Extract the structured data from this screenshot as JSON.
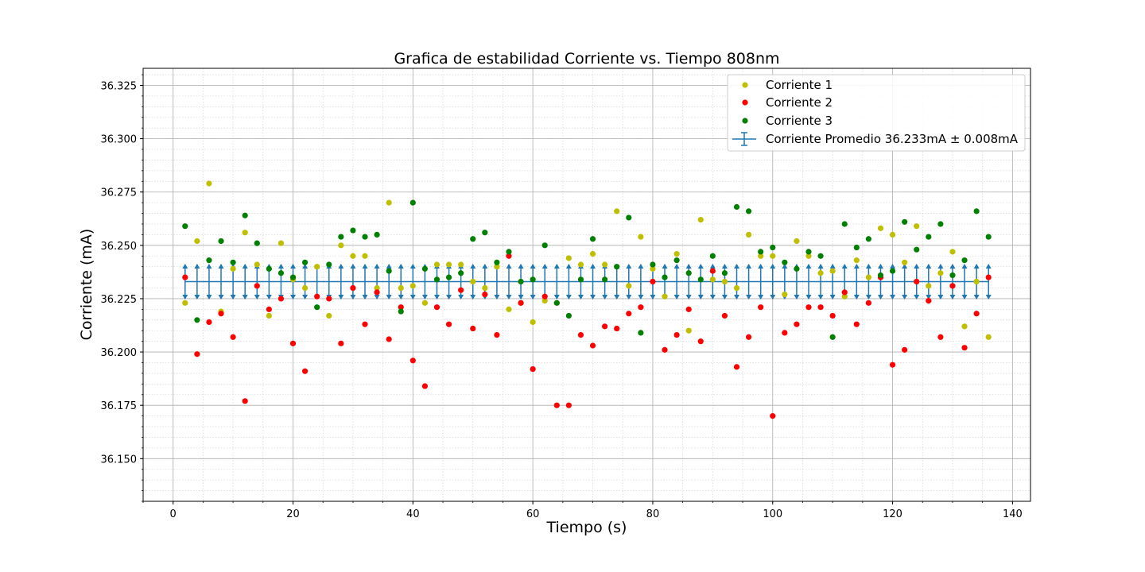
{
  "chart_data": {
    "type": "scatter",
    "title": "Grafica de estabilidad Corriente vs. Tiempo 808nm",
    "xlabel": "Tiempo (s)",
    "ylabel": "Corriente (mA)",
    "xlim": [
      -5,
      143
    ],
    "ylim": [
      36.13,
      36.333
    ],
    "xticks": [
      0,
      20,
      40,
      60,
      80,
      100,
      120,
      140
    ],
    "yticks": [
      36.15,
      36.175,
      36.2,
      36.225,
      36.25,
      36.275,
      36.3,
      36.325
    ],
    "ytick_labels": [
      "36.150",
      "36.175",
      "36.200",
      "36.225",
      "36.250",
      "36.275",
      "36.300",
      "36.325"
    ],
    "grid": true,
    "minor_grid": true,
    "legend_position": "top-right",
    "x": [
      2,
      4,
      6,
      8,
      10,
      12,
      14,
      16,
      18,
      20,
      22,
      24,
      26,
      28,
      30,
      32,
      34,
      36,
      38,
      40,
      42,
      44,
      46,
      48,
      50,
      52,
      54,
      56,
      58,
      60,
      62,
      64,
      66,
      68,
      70,
      72,
      74,
      76,
      78,
      80,
      82,
      84,
      86,
      88,
      90,
      92,
      94,
      96,
      98,
      100,
      102,
      104,
      106,
      108,
      110,
      112,
      114,
      116,
      118,
      120,
      122,
      124,
      126,
      128,
      130,
      132,
      134,
      136
    ],
    "series": [
      {
        "name": "Corriente 1",
        "color": "#bfbf00",
        "values": [
          36.223,
          36.252,
          36.279,
          36.219,
          36.239,
          36.256,
          36.241,
          36.217,
          36.251,
          36.234,
          36.23,
          36.24,
          36.217,
          36.25,
          36.245,
          36.245,
          36.23,
          36.27,
          36.23,
          36.231,
          36.223,
          36.241,
          36.241,
          36.241,
          36.233,
          36.23,
          36.24,
          36.22,
          36.223,
          36.214,
          36.224,
          36.223,
          36.244,
          36.241,
          36.246,
          36.241,
          36.266,
          36.231,
          36.254,
          36.239,
          36.226,
          36.246,
          36.21,
          36.262,
          36.234,
          36.233,
          36.23,
          36.255,
          36.245,
          36.245,
          36.227,
          36.252,
          36.245,
          36.237,
          36.238,
          36.226,
          36.243,
          36.235,
          36.258,
          36.255,
          36.242,
          36.259,
          36.231,
          36.237,
          36.247,
          36.212,
          36.233,
          36.207
        ]
      },
      {
        "name": "Corriente 2",
        "color": "#ff0000",
        "values": [
          36.235,
          36.199,
          36.214,
          36.218,
          36.207,
          36.177,
          36.231,
          36.22,
          36.225,
          36.204,
          36.191,
          36.226,
          36.225,
          36.204,
          36.23,
          36.213,
          36.228,
          36.206,
          36.221,
          36.196,
          36.184,
          36.221,
          36.213,
          36.229,
          36.211,
          36.227,
          36.208,
          36.245,
          36.223,
          36.192,
          36.226,
          36.175,
          36.175,
          36.208,
          36.203,
          36.212,
          36.211,
          36.218,
          36.221,
          36.233,
          36.201,
          36.208,
          36.22,
          36.205,
          36.238,
          36.217,
          36.193,
          36.207,
          36.221,
          36.17,
          36.209,
          36.213,
          36.221,
          36.221,
          36.217,
          36.228,
          36.213,
          36.223,
          36.235,
          36.194,
          36.201,
          36.233,
          36.224,
          36.207,
          36.231,
          36.202,
          36.218,
          36.235
        ]
      },
      {
        "name": "Corriente 3",
        "color": "#008000",
        "values": [
          36.259,
          36.215,
          36.243,
          36.252,
          36.242,
          36.264,
          36.251,
          36.239,
          36.237,
          36.235,
          36.242,
          36.221,
          36.241,
          36.254,
          36.257,
          36.254,
          36.255,
          36.238,
          36.219,
          36.27,
          36.239,
          36.234,
          36.235,
          36.237,
          36.253,
          36.256,
          36.242,
          36.247,
          36.233,
          36.234,
          36.25,
          36.223,
          36.217,
          36.234,
          36.253,
          36.234,
          36.24,
          36.263,
          36.209,
          36.241,
          36.235,
          36.243,
          36.237,
          36.234,
          36.245,
          36.237,
          36.268,
          36.266,
          36.247,
          36.249,
          36.242,
          36.239,
          36.247,
          36.245,
          36.207,
          36.26,
          36.249,
          36.253,
          36.236,
          36.238,
          36.261,
          36.248,
          36.254,
          36.26,
          36.236,
          36.243,
          36.266,
          36.254
        ]
      }
    ],
    "average": {
      "name": "Corriente Promedio 36.233mA ± 0.008mA",
      "color": "#1f77b4",
      "value": 36.233,
      "error": 0.008
    }
  }
}
